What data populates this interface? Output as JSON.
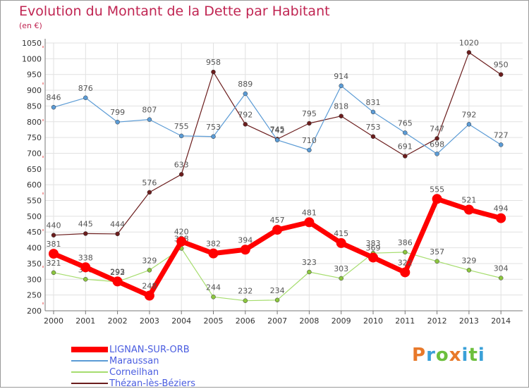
{
  "title": "Evolution du Montant de la Dette par Habitant",
  "subtitle": "(en €)",
  "logo": {
    "text": "Proxiti",
    "colors": [
      "#e8792a",
      "#3aa0d8",
      "#6cbf3d",
      "#e8792a",
      "#3aa0d8",
      "#6cbf3d",
      "#3aa0d8"
    ]
  },
  "chart_data": {
    "type": "line",
    "title": "Evolution du Montant de la Dette par Habitant",
    "ylabel": "(en €)",
    "x": [
      "2000",
      "2001",
      "2002",
      "2003",
      "2004",
      "2005",
      "2006",
      "2007",
      "2008",
      "2009",
      "2010",
      "2011",
      "2012",
      "2013",
      "2014"
    ],
    "ylim": [
      200,
      1050
    ],
    "yticks": [
      200,
      250,
      300,
      350,
      400,
      450,
      500,
      550,
      600,
      650,
      700,
      750,
      800,
      850,
      900,
      950,
      1000,
      1050
    ],
    "grid": true,
    "legend_position": "bottom-left",
    "series": [
      {
        "name": "Thézan-lès-Béziers",
        "color": "#6b1d1d",
        "marker": "#6b1d1d",
        "width": 1.2,
        "values": [
          440,
          445,
          444,
          576,
          633,
          958,
          792,
          745,
          795,
          818,
          753,
          691,
          747,
          1020,
          950
        ]
      },
      {
        "name": "Maraussan",
        "color": "#5b9bd5",
        "marker": "#5b9bd5",
        "width": 1.2,
        "values": [
          846,
          876,
          799,
          807,
          755,
          753,
          889,
          742,
          710,
          914,
          831,
          765,
          698,
          792,
          727
        ]
      },
      {
        "name": "Corneilhan",
        "color": "#a6dd6e",
        "marker": "#8cc63f",
        "width": 1.2,
        "values": [
          321,
          300,
          292,
          329,
          398,
          244,
          232,
          234,
          323,
          303,
          383,
          386,
          357,
          329,
          304
        ]
      },
      {
        "name": "LIGNAN-SUR-ORB",
        "color": "#ff0000",
        "marker": "#ff0000",
        "width": 7,
        "values": [
          381,
          338,
          293,
          248,
          420,
          382,
          394,
          457,
          481,
          415,
          369,
          322,
          555,
          521,
          494
        ]
      }
    ],
    "legend_order": [
      "LIGNAN-SUR-ORB",
      "Maraussan",
      "Corneilhan",
      "Thézan-lès-Béziers"
    ]
  }
}
